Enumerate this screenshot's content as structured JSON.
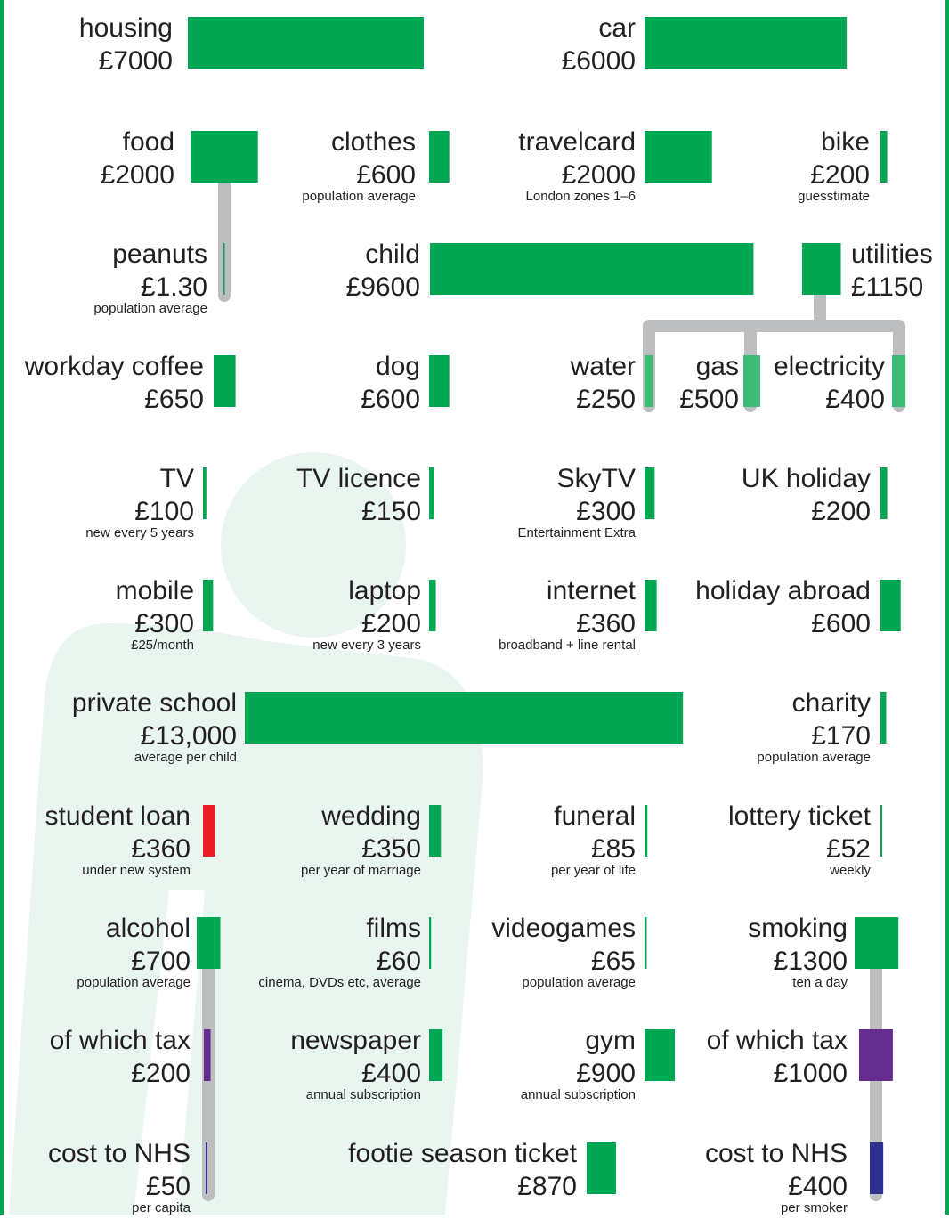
{
  "items": [
    {
      "label": "housing",
      "value_label": "£7000",
      "amount": 7000,
      "color": "#00a651"
    },
    {
      "label": "car",
      "value_label": "£6000",
      "amount": 6000,
      "color": "#00a651"
    },
    {
      "label": "food",
      "value_label": "£2000",
      "amount": 2000,
      "color": "#00a651"
    },
    {
      "label": "clothes",
      "value_label": "£600",
      "amount": 600,
      "note": "population average",
      "color": "#00a651"
    },
    {
      "label": "travelcard",
      "value_label": "£2000",
      "amount": 2000,
      "note": "London zones 1–6",
      "color": "#00a651"
    },
    {
      "label": "bike",
      "value_label": "£200",
      "amount": 200,
      "note": "guesstimate",
      "color": "#00a651"
    },
    {
      "label": "peanuts",
      "value_label": "£1.30",
      "amount": 1.3,
      "note": "population average",
      "color": "#00a651"
    },
    {
      "label": "child",
      "value_label": "£9600",
      "amount": 9600,
      "color": "#00a651"
    },
    {
      "label": "utilities",
      "value_label": "£1150",
      "amount": 1150,
      "color": "#00a651"
    },
    {
      "label": "workday coffee",
      "value_label": "£650",
      "amount": 650,
      "color": "#00a651"
    },
    {
      "label": "dog",
      "value_label": "£600",
      "amount": 600,
      "color": "#00a651"
    },
    {
      "label": "water",
      "value_label": "£250",
      "amount": 250,
      "color": "#3dba73"
    },
    {
      "label": "gas",
      "value_label": "£500",
      "amount": 500,
      "color": "#3dba73"
    },
    {
      "label": "electricity",
      "value_label": "£400",
      "amount": 400,
      "color": "#3dba73"
    },
    {
      "label": "TV",
      "value_label": "£100",
      "amount": 100,
      "note": "new every 5 years",
      "color": "#00a651"
    },
    {
      "label": "TV licence",
      "value_label": "£150",
      "amount": 150,
      "color": "#00a651"
    },
    {
      "label": "SkyTV",
      "value_label": "£300",
      "amount": 300,
      "note": "Entertainment Extra",
      "color": "#00a651"
    },
    {
      "label": "UK holiday",
      "value_label": "£200",
      "amount": 200,
      "color": "#00a651"
    },
    {
      "label": "mobile",
      "value_label": "£300",
      "amount": 300,
      "note": "£25/month",
      "color": "#00a651"
    },
    {
      "label": "laptop",
      "value_label": "£200",
      "amount": 200,
      "note": "new every 3 years",
      "color": "#00a651"
    },
    {
      "label": "internet",
      "value_label": "£360",
      "amount": 360,
      "note": "broadband + line rental",
      "color": "#00a651"
    },
    {
      "label": "holiday abroad",
      "value_label": "£600",
      "amount": 600,
      "color": "#00a651"
    },
    {
      "label": "private school",
      "value_label": "£13,000",
      "amount": 13000,
      "note": "average per child",
      "color": "#00a651"
    },
    {
      "label": "charity",
      "value_label": "£170",
      "amount": 170,
      "note": "population average",
      "color": "#00a651"
    },
    {
      "label": "student loan",
      "value_label": "£360",
      "amount": 360,
      "note": "under new system",
      "color": "#ed1c24"
    },
    {
      "label": "wedding",
      "value_label": "£350",
      "amount": 350,
      "note": "per year of marriage",
      "color": "#00a651"
    },
    {
      "label": "funeral",
      "value_label": "£85",
      "amount": 85,
      "note": "per year of life",
      "color": "#00a651"
    },
    {
      "label": "lottery ticket",
      "value_label": "£52",
      "amount": 52,
      "note": "weekly",
      "color": "#00a651"
    },
    {
      "label": "alcohol",
      "value_label": "£700",
      "amount": 700,
      "note": "population average",
      "color": "#00a651"
    },
    {
      "label": "films",
      "value_label": "£60",
      "amount": 60,
      "note": "cinema, DVDs etc, average",
      "color": "#00a651"
    },
    {
      "label": "videogames",
      "value_label": "£65",
      "amount": 65,
      "note": "population average",
      "color": "#00a651"
    },
    {
      "label": "smoking",
      "value_label": "£1300",
      "amount": 1300,
      "note": "ten a day",
      "color": "#00a651"
    },
    {
      "label": "of which tax",
      "value_label": "£200",
      "amount": 200,
      "color": "#662d91"
    },
    {
      "label": "newspaper",
      "value_label": "£400",
      "amount": 400,
      "note": "annual subscription",
      "color": "#00a651"
    },
    {
      "label": "gym",
      "value_label": "£900",
      "amount": 900,
      "note": "annual subscription",
      "color": "#00a651"
    },
    {
      "label": "of which tax",
      "value_label": "£1000",
      "amount": 1000,
      "color": "#662d91"
    },
    {
      "label": "cost to NHS",
      "value_label": "£50",
      "amount": 50,
      "note": "per capita",
      "color": "#2e3192"
    },
    {
      "label": "footie season ticket",
      "value_label": "£870",
      "amount": 870,
      "color": "#00a651"
    },
    {
      "label": "cost to NHS",
      "value_label": "£400",
      "amount": 400,
      "note": "per smoker",
      "color": "#2e3192"
    }
  ]
}
